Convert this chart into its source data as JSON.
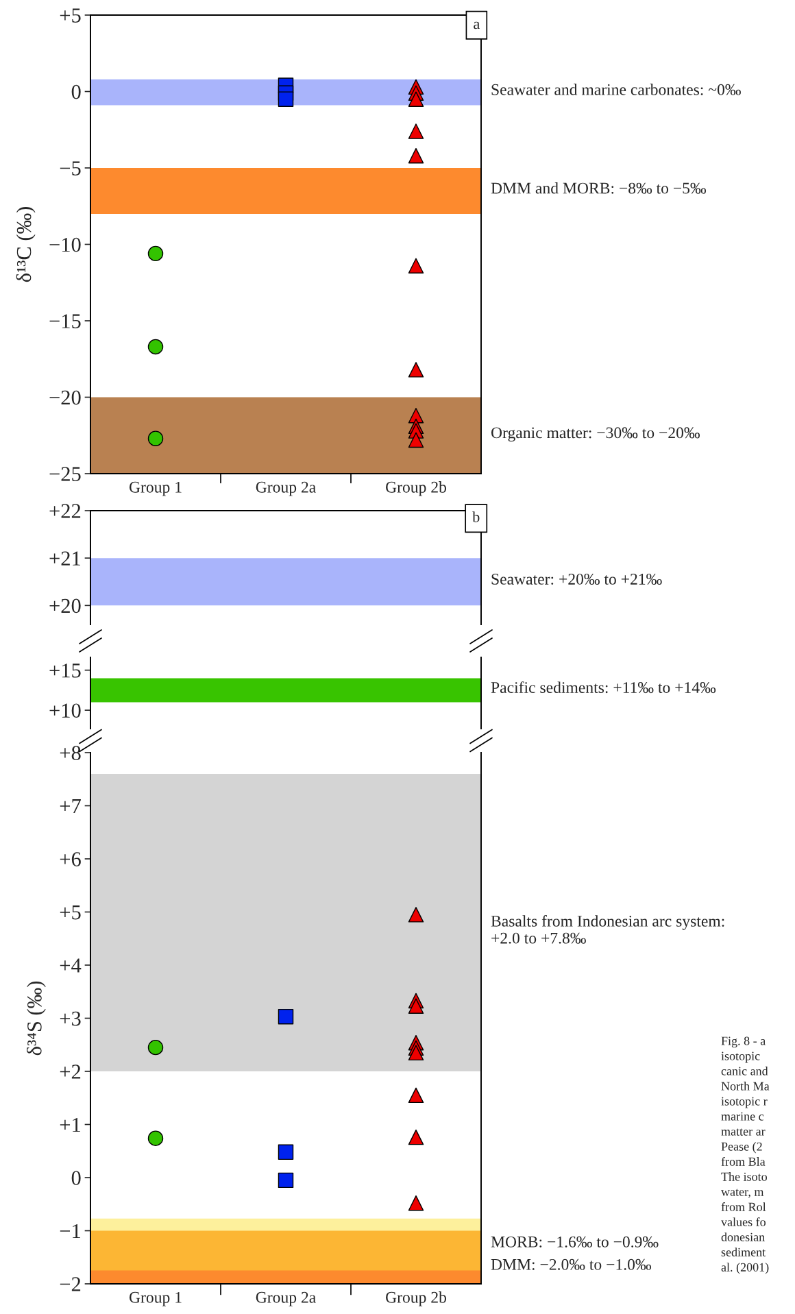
{
  "chart_data": [
    {
      "type": "scatter",
      "ylabel": "δ¹³C (‰)",
      "categories": [
        "Group 1",
        "Group 2a",
        "Group 2b"
      ],
      "ylim": [
        -25,
        5
      ],
      "yticks": [
        {
          "value": -25,
          "label": "−25"
        },
        {
          "value": -20,
          "label": "−20"
        },
        {
          "value": -15,
          "label": "−15"
        },
        {
          "value": -10,
          "label": "−10"
        },
        {
          "value": -5,
          "label": "−5"
        },
        0,
        {
          "value": 5,
          "label": "+5"
        }
      ],
      "series": [
        {
          "color": "#33c300",
          "marker": "circle",
          "x": [
            "Group 1",
            "Group 1",
            "Group 1"
          ],
          "values": [
            -10.6,
            -16.7,
            -22.7
          ]
        },
        {
          "color": "#0022ee",
          "marker": "square",
          "x": [
            "Group 2a",
            "Group 2a",
            "Group 2a"
          ],
          "values": [
            0.4,
            -0.1,
            -0.5
          ]
        },
        {
          "color": "#ee0000",
          "marker": "triangle",
          "x": [
            "Group 2b",
            "Group 2b",
            "Group 2b",
            "Group 2b",
            "Group 2b",
            "Group 2b",
            "Group 2b",
            "Group 2b",
            "Group 2b",
            "Group 2b",
            "Group 2b"
          ],
          "values": [
            0.3,
            -0.1,
            -0.5,
            -2.6,
            -4.2,
            -11.4,
            -18.2,
            -21.2,
            -21.9,
            -22.2,
            -22.8
          ]
        }
      ],
      "bands": [
        {
          "axis": "y",
          "from": -0.9,
          "to": 0.8,
          "label": "Seawater and marine carbonates: ~0‰",
          "color": "#a9b4fb"
        },
        {
          "axis": "y",
          "from": -8,
          "to": -5,
          "label": "DMM and MORB: −8‰ to −5‰",
          "color": "#fd8a2e"
        },
        {
          "axis": "y",
          "from": -25,
          "to": -20,
          "label": "Organic matter: −30‰ to −20‰",
          "color": "#b98151"
        }
      ],
      "annotations": [
        "a",
        "Fig. 8 - a\nisotopic\ncanic and\nNorth Ma\nisotopic r\nmarine c\nmatter ar\nPease (2\nfrom Bla\nThe isoto\nwater, m\nfrom Rol\nvalues fo\ndonesian\nsediment\nal. (2001)"
      ]
    },
    {
      "type": "scatter",
      "categories": [
        null,
        null,
        null
      ],
      "tick_labels": "y",
      "ylim": [
        19.6,
        22
      ],
      "yticks": [
        {
          "value": 20,
          "label": "+20"
        },
        {
          "value": 21,
          "label": "+21"
        },
        {
          "value": 22,
          "label": "+22"
        }
      ],
      "bands": [
        {
          "axis": "y",
          "from": 20,
          "to": 21,
          "label": "Seawater: +20‰ to +21‰",
          "color": "#a9b4fb"
        }
      ],
      "annotations": [
        "b"
      ]
    },
    {
      "type": "scatter",
      "categories": [
        null,
        null,
        null
      ],
      "tick_labels": "y",
      "ylim": [
        7.7,
        16.6
      ],
      "yticks": [
        {
          "value": 10,
          "label": "+10"
        },
        {
          "value": 15,
          "label": "+15"
        }
      ],
      "bands": [
        {
          "axis": "y",
          "from": 11,
          "to": 14,
          "label": "Pacific sediments: +11‰ to +14‰",
          "color": "#38c400"
        }
      ]
    },
    {
      "type": "scatter",
      "ylabel": "δ³⁴S (‰)",
      "categories": [
        "Group 1",
        "Group 2a",
        "Group 2b"
      ],
      "ylim": [
        -2,
        8
      ],
      "yticks": [
        {
          "value": -2,
          "label": "−2"
        },
        {
          "value": -1,
          "label": "−1"
        },
        0,
        {
          "value": 1,
          "label": "+1"
        },
        {
          "value": 2,
          "label": "+2"
        },
        {
          "value": 3,
          "label": "+3"
        },
        {
          "value": 4,
          "label": "+4"
        },
        {
          "value": 5,
          "label": "+5"
        },
        {
          "value": 6,
          "label": "+6"
        },
        {
          "value": 7,
          "label": "+7"
        },
        {
          "value": 8,
          "label": "+8"
        }
      ],
      "series": [
        {
          "color": "#33c300",
          "marker": "circle",
          "x": [
            "Group 1",
            "Group 1"
          ],
          "values": [
            2.45,
            0.74
          ]
        },
        {
          "color": "#0022ee",
          "marker": "square",
          "x": [
            "Group 2a",
            "Group 2a",
            "Group 2a"
          ],
          "values": [
            3.03,
            0.48,
            -0.05
          ]
        },
        {
          "color": "#ee0000",
          "marker": "triangle",
          "x": [
            "Group 2b",
            "Group 2b",
            "Group 2b",
            "Group 2b",
            "Group 2b",
            "Group 2b",
            "Group 2b",
            "Group 2b",
            "Group 2b"
          ],
          "values": [
            4.95,
            3.33,
            3.23,
            2.54,
            2.44,
            2.35,
            1.55,
            0.76,
            -0.48
          ]
        }
      ],
      "bands": [
        {
          "axis": "y",
          "from": 2.0,
          "to": 7.6,
          "label": "Basalts from Indonesian arc system:\n+2.0 to +7.8‰",
          "color": "#d4d4d4"
        },
        {
          "axis": "y",
          "from": -2.0,
          "to": -1.0,
          "label": "DMM: −2.0‰ to −1.0‰",
          "color": "#fd8a2e"
        },
        {
          "axis": "y",
          "from": -1.75,
          "to": -0.77,
          "label": "MORB: −1.6‰ to −0.9‰",
          "color": "#fbe13a"
        }
      ]
    }
  ]
}
